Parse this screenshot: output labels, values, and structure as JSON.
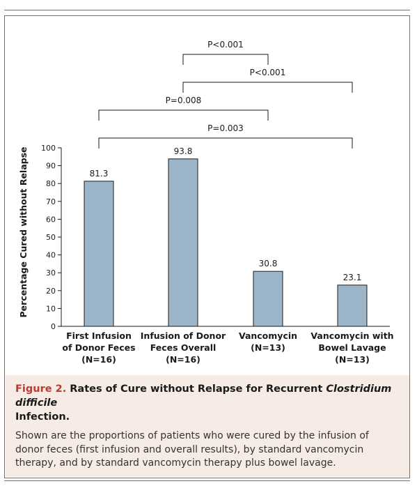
{
  "chart_data": {
    "type": "bar",
    "categories": [
      [
        "First Infusion",
        "of Donor Feces",
        "(N=16)"
      ],
      [
        "Infusion of Donor",
        "Feces Overall",
        "(N=16)"
      ],
      [
        "Vancomycin",
        "(N=13)"
      ],
      [
        "Vancomycin with",
        "Bowel Lavage",
        "(N=13)"
      ]
    ],
    "values": [
      81.3,
      93.8,
      30.8,
      23.1
    ],
    "value_labels": [
      "81.3",
      "93.8",
      "30.8",
      "23.1"
    ],
    "ylabel": "Percentage Cured without Relapse",
    "ylim": [
      0,
      100
    ],
    "yticks": [
      0,
      10,
      20,
      30,
      40,
      50,
      60,
      70,
      80,
      90,
      100
    ],
    "bar_color": "#9db5c9",
    "bar_stroke": "#1a1a1a",
    "comparisons": [
      {
        "from": 1,
        "to": 2,
        "label": "P<0.001"
      },
      {
        "from": 1,
        "to": 3,
        "label": "P<0.001"
      },
      {
        "from": 0,
        "to": 2,
        "label": "P=0.008"
      },
      {
        "from": 0,
        "to": 3,
        "label": "P=0.003"
      }
    ]
  },
  "caption": {
    "figure_label": "Figure 2.",
    "title_plain": " Rates of Cure without Relapse for Recurrent ",
    "title_italic": "Clostridium difficile",
    "title_end": "Infection.",
    "body": "Shown are the proportions of patients who were cured by the infusion of donor feces (first infusion and overall results), by standard vancomycin therapy, and by standard vancomycin therapy plus bowel lavage."
  },
  "colors": {
    "accent": "#c0392b",
    "caption_background": "#f6ebe5",
    "frame": "#7a6f6a"
  }
}
